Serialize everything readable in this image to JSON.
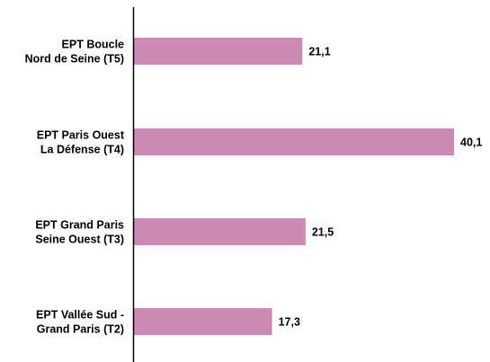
{
  "chart_data": {
    "type": "bar",
    "orientation": "horizontal",
    "categories": [
      [
        "EPT Boucle",
        "Nord de Seine (T5)"
      ],
      [
        "EPT Paris Ouest",
        "La Défense (T4)"
      ],
      [
        "EPT Grand Paris",
        "Seine Ouest (T3)"
      ],
      [
        "EPT Vallée Sud -",
        "Grand Paris (T2)"
      ]
    ],
    "values": [
      21.1,
      40.1,
      21.5,
      17.3
    ],
    "value_labels": [
      "21,1",
      "40,1",
      "21,5",
      "17,3"
    ],
    "xlim": [
      0,
      40.1
    ],
    "grid": false,
    "legend": "none",
    "colors": {
      "bar": "#cc8ab4",
      "axis": "#000000",
      "text": "#000000"
    }
  }
}
